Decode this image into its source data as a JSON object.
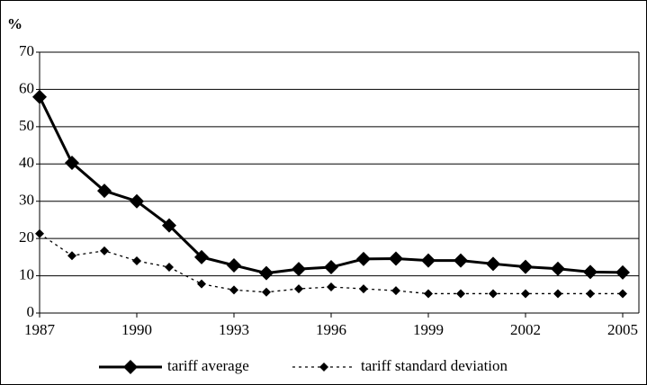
{
  "chart_data": {
    "type": "line",
    "y_label": "%",
    "x": [
      1987,
      1988,
      1989,
      1990,
      1991,
      1992,
      1993,
      1994,
      1995,
      1996,
      1997,
      1998,
      1999,
      2000,
      2001,
      2002,
      2003,
      2004,
      2005
    ],
    "series": [
      {
        "name": "tariff average",
        "color": "#000000",
        "style": "solid",
        "values": [
          58,
          40.3,
          32.8,
          30,
          23.5,
          15,
          12.8,
          10.7,
          11.8,
          12.3,
          14.5,
          14.6,
          14.1,
          14.1,
          13.2,
          12.4,
          11.9,
          11,
          10.9
        ]
      },
      {
        "name": "tariff standard deviation",
        "color": "#000000",
        "style": "dotted",
        "values": [
          21.3,
          15.4,
          16.7,
          14,
          12.3,
          7.8,
          6.2,
          5.6,
          6.5,
          7,
          6.5,
          6,
          5.2,
          5.2,
          5.2,
          5.2,
          5.2,
          5.2,
          5.2
        ]
      }
    ],
    "xlim": [
      1987,
      2005.5
    ],
    "xticks": [
      1987,
      1990,
      1993,
      1996,
      1999,
      2002,
      2005
    ],
    "ylim": [
      0,
      70
    ],
    "yticks": [
      0,
      10,
      20,
      30,
      40,
      50,
      60,
      70
    ],
    "grid": true
  }
}
